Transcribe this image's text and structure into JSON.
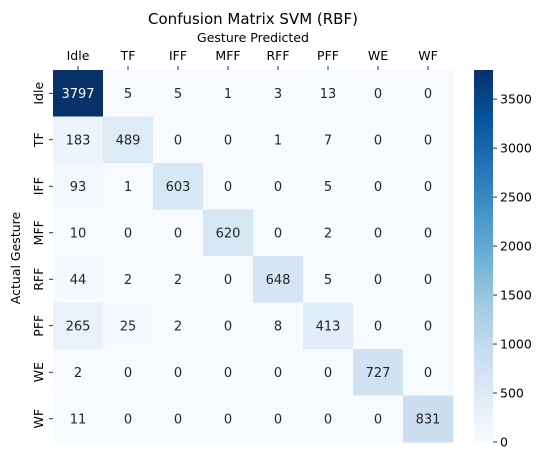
{
  "chart_data": {
    "type": "heatmap",
    "title": "Confusion Matrix SVM (RBF)",
    "xlabel": "Gesture Predicted",
    "ylabel": "Actual Gesture",
    "x_categories": [
      "Idle",
      "TF",
      "IFF",
      "MFF",
      "RFF",
      "PFF",
      "WE",
      "WF"
    ],
    "y_categories": [
      "Idle",
      "TF",
      "IFF",
      "MFF",
      "RFF",
      "PFF",
      "WE",
      "WF"
    ],
    "values": [
      [
        3797,
        5,
        5,
        1,
        3,
        13,
        0,
        0
      ],
      [
        183,
        489,
        0,
        0,
        1,
        7,
        0,
        0
      ],
      [
        93,
        1,
        603,
        0,
        0,
        5,
        0,
        0
      ],
      [
        10,
        0,
        0,
        620,
        0,
        2,
        0,
        0
      ],
      [
        44,
        2,
        2,
        0,
        648,
        5,
        0,
        0
      ],
      [
        265,
        25,
        2,
        0,
        8,
        413,
        0,
        0
      ],
      [
        2,
        0,
        0,
        0,
        0,
        0,
        727,
        0
      ],
      [
        11,
        0,
        0,
        0,
        0,
        0,
        0,
        831
      ]
    ],
    "colormap": "Blues",
    "vmin": 0,
    "vmax": 3797,
    "colorbar_ticks": [
      0,
      500,
      1000,
      1500,
      2000,
      2500,
      3000,
      3500
    ],
    "colors": {
      "low": "#f7fbff",
      "high": "#08306b",
      "text_dark": "#262626",
      "text_light": "#ffffff"
    }
  }
}
